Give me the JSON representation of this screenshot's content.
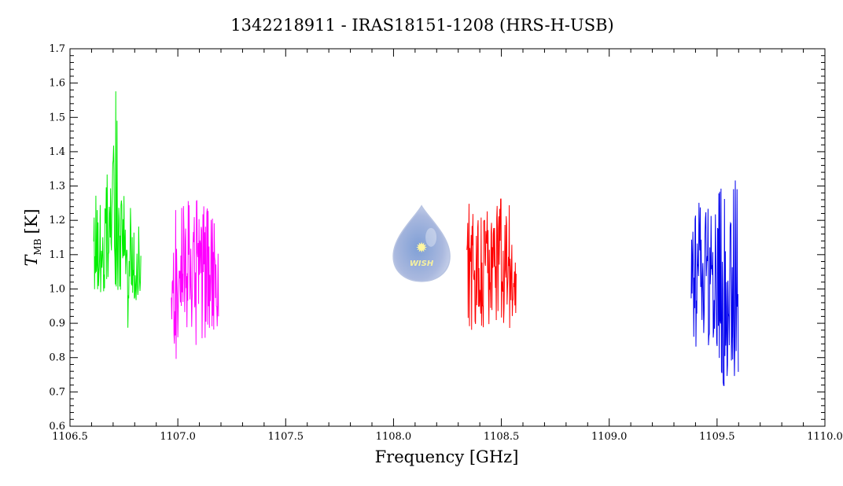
{
  "chart_data": {
    "type": "line",
    "title": "1342218911 - IRAS18151-1208 (HRS-H-USB)",
    "xlabel": "Frequency [GHz]",
    "ylabel": {
      "symbol": "T",
      "subscript": "MB",
      "unit": "[K]"
    },
    "xlim": [
      1106.5,
      1110.0
    ],
    "ylim": [
      0.6,
      1.7
    ],
    "x_ticks": [
      1106.5,
      1107.0,
      1107.5,
      1108.0,
      1108.5,
      1109.0,
      1109.5,
      1110.0
    ],
    "x_tick_labels": [
      "1106.5",
      "1107.0",
      "1107.5",
      "1108.0",
      "1108.5",
      "1109.0",
      "1109.5",
      "1110.0"
    ],
    "y_ticks": [
      0.6,
      0.7,
      0.8,
      0.9,
      1.0,
      1.1,
      1.2,
      1.3,
      1.4,
      1.5,
      1.6,
      1.7
    ],
    "y_tick_labels": [
      "0.6",
      "0.7",
      "0.8",
      "0.9",
      "1.0",
      "1.1",
      "1.2",
      "1.3",
      "1.4",
      "1.5",
      "1.6",
      "1.7"
    ],
    "grid": false,
    "series": [
      {
        "color": "#00ee00",
        "x": [
          1106.61,
          1106.62,
          1106.63,
          1106.64,
          1106.65,
          1106.66,
          1106.67,
          1106.68,
          1106.69,
          1106.7,
          1106.71,
          1106.72,
          1106.73,
          1106.74,
          1106.75,
          1106.76,
          1106.77,
          1106.78,
          1106.79,
          1106.8,
          1106.81,
          1106.82,
          1106.83
        ],
        "y_max": [
          1.2,
          1.3,
          1.22,
          1.25,
          1.2,
          1.28,
          1.37,
          1.25,
          1.33,
          1.4,
          1.61,
          1.5,
          1.3,
          1.25,
          1.3,
          1.2,
          1.13,
          1.25,
          1.15,
          1.2,
          1.1,
          1.22,
          1.1
        ],
        "y_min": [
          0.9,
          0.95,
          1.0,
          0.92,
          1.0,
          0.98,
          1.02,
          1.0,
          1.05,
          1.03,
          1.0,
          1.0,
          0.98,
          1.0,
          0.95,
          0.92,
          0.82,
          0.96,
          0.96,
          0.95,
          0.96,
          0.98,
          1.0
        ]
      },
      {
        "color": "#ff00ff",
        "x": [
          1106.97,
          1106.98,
          1106.99,
          1107.0,
          1107.01,
          1107.02,
          1107.03,
          1107.04,
          1107.05,
          1107.06,
          1107.07,
          1107.08,
          1107.09,
          1107.1,
          1107.11,
          1107.12,
          1107.13,
          1107.14,
          1107.15,
          1107.16,
          1107.17,
          1107.18,
          1107.19
        ],
        "y_max": [
          1.23,
          1.12,
          1.24,
          1.17,
          1.2,
          1.25,
          1.26,
          1.24,
          1.27,
          1.2,
          1.15,
          1.25,
          1.27,
          1.22,
          1.18,
          1.26,
          1.27,
          1.23,
          1.2,
          1.21,
          1.19,
          1.12,
          1.13
        ],
        "y_min": [
          0.81,
          0.88,
          0.78,
          0.85,
          0.9,
          0.86,
          0.92,
          0.88,
          0.85,
          0.9,
          0.85,
          0.88,
          0.77,
          0.86,
          0.83,
          0.88,
          0.82,
          0.9,
          0.86,
          0.88,
          0.84,
          0.9,
          0.85
        ]
      },
      {
        "color": "#ff0000",
        "x": [
          1108.34,
          1108.35,
          1108.36,
          1108.37,
          1108.38,
          1108.39,
          1108.4,
          1108.41,
          1108.42,
          1108.43,
          1108.44,
          1108.45,
          1108.46,
          1108.47,
          1108.48,
          1108.49,
          1108.5,
          1108.51,
          1108.52,
          1108.53,
          1108.54,
          1108.55,
          1108.56,
          1108.57
        ],
        "y_max": [
          1.2,
          1.25,
          1.18,
          1.23,
          1.15,
          1.27,
          1.22,
          1.32,
          1.2,
          1.28,
          1.22,
          1.25,
          1.18,
          1.2,
          1.27,
          1.22,
          1.3,
          1.15,
          1.24,
          1.18,
          1.3,
          1.12,
          1.1,
          1.12
        ],
        "y_min": [
          0.92,
          0.88,
          0.86,
          0.92,
          0.88,
          0.95,
          0.92,
          0.88,
          0.85,
          0.92,
          0.88,
          0.94,
          0.9,
          0.86,
          0.92,
          0.83,
          0.9,
          0.88,
          0.84,
          0.92,
          0.86,
          0.9,
          0.89,
          0.92
        ]
      },
      {
        "color": "#0000ee",
        "x": [
          1109.38,
          1109.39,
          1109.4,
          1109.41,
          1109.42,
          1109.43,
          1109.44,
          1109.45,
          1109.46,
          1109.47,
          1109.48,
          1109.49,
          1109.5,
          1109.51,
          1109.52,
          1109.53,
          1109.54,
          1109.55,
          1109.56,
          1109.57,
          1109.58,
          1109.59,
          1109.6
        ],
        "y_max": [
          1.15,
          1.2,
          1.22,
          1.25,
          1.28,
          1.18,
          1.26,
          1.22,
          1.25,
          1.2,
          1.26,
          1.22,
          1.25,
          1.3,
          1.32,
          1.24,
          1.34,
          1.28,
          1.2,
          1.22,
          1.33,
          1.3,
          1.3
        ],
        "y_min": [
          0.9,
          0.85,
          0.8,
          0.88,
          0.86,
          0.9,
          0.84,
          0.88,
          0.82,
          0.9,
          0.85,
          0.88,
          0.82,
          0.8,
          0.75,
          0.7,
          0.67,
          0.78,
          0.75,
          0.8,
          0.74,
          0.72,
          0.73
        ]
      }
    ]
  },
  "logo": {
    "name": "wish-logo",
    "text": "WISH",
    "x": 1108.13,
    "y": 1.1
  }
}
